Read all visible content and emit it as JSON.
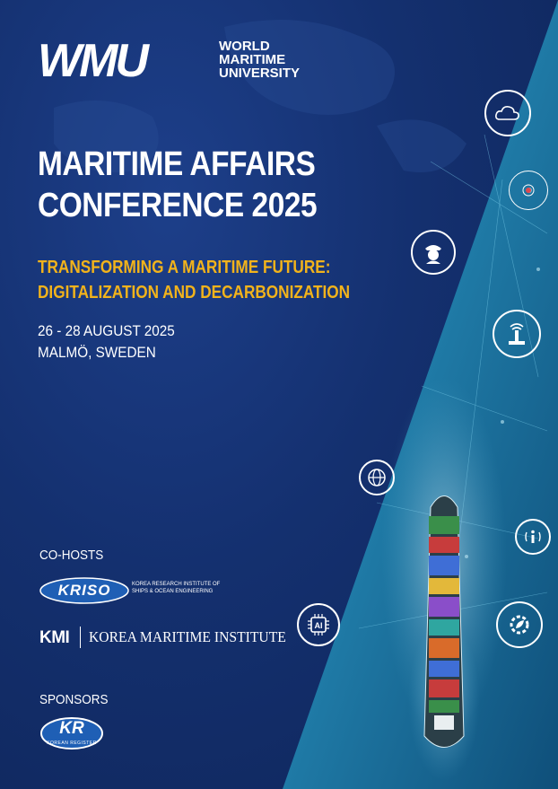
{
  "header": {
    "logo_mark": "WMU",
    "logo_name_lines": [
      "WORLD",
      "MARITIME",
      "UNIVERSITY"
    ]
  },
  "event": {
    "title_lines": [
      "MARITIME AFFAIRS",
      "CONFERENCE 2025"
    ],
    "subtitle_lines": [
      "TRANSFORMING A MARITIME FUTURE:",
      "DIGITALIZATION AND DECARBONIZATION"
    ],
    "date": "26 - 28 AUGUST 2025",
    "location": "MALMÖ, SWEDEN"
  },
  "cohosts": {
    "label": "CO-HOSTS",
    "kriso": {
      "logo_text": "KRISO",
      "description_lines": [
        "KOREA RESEARCH INSTITUTE OF",
        "SHIPS & OCEAN ENGINEERING"
      ]
    },
    "kmi": {
      "abbr": "KMI",
      "name": "KOREA MARITIME INSTITUTE"
    }
  },
  "sponsors": {
    "label": "SPONSORS",
    "kr": {
      "logo_text": "KR",
      "subtext": "KOREAN REGISTER"
    }
  },
  "icons": [
    "cloud-co2-icon",
    "location-target-icon",
    "captain-icon",
    "antenna-icon",
    "globe-icon",
    "info-signal-icon",
    "ai-chip-icon",
    "eco-gear-icon"
  ],
  "colors": {
    "background": "#14306f",
    "accent_yellow": "#f2b31b",
    "sea": "#1c6fa0",
    "logo_blue": "#1f5fb5"
  }
}
